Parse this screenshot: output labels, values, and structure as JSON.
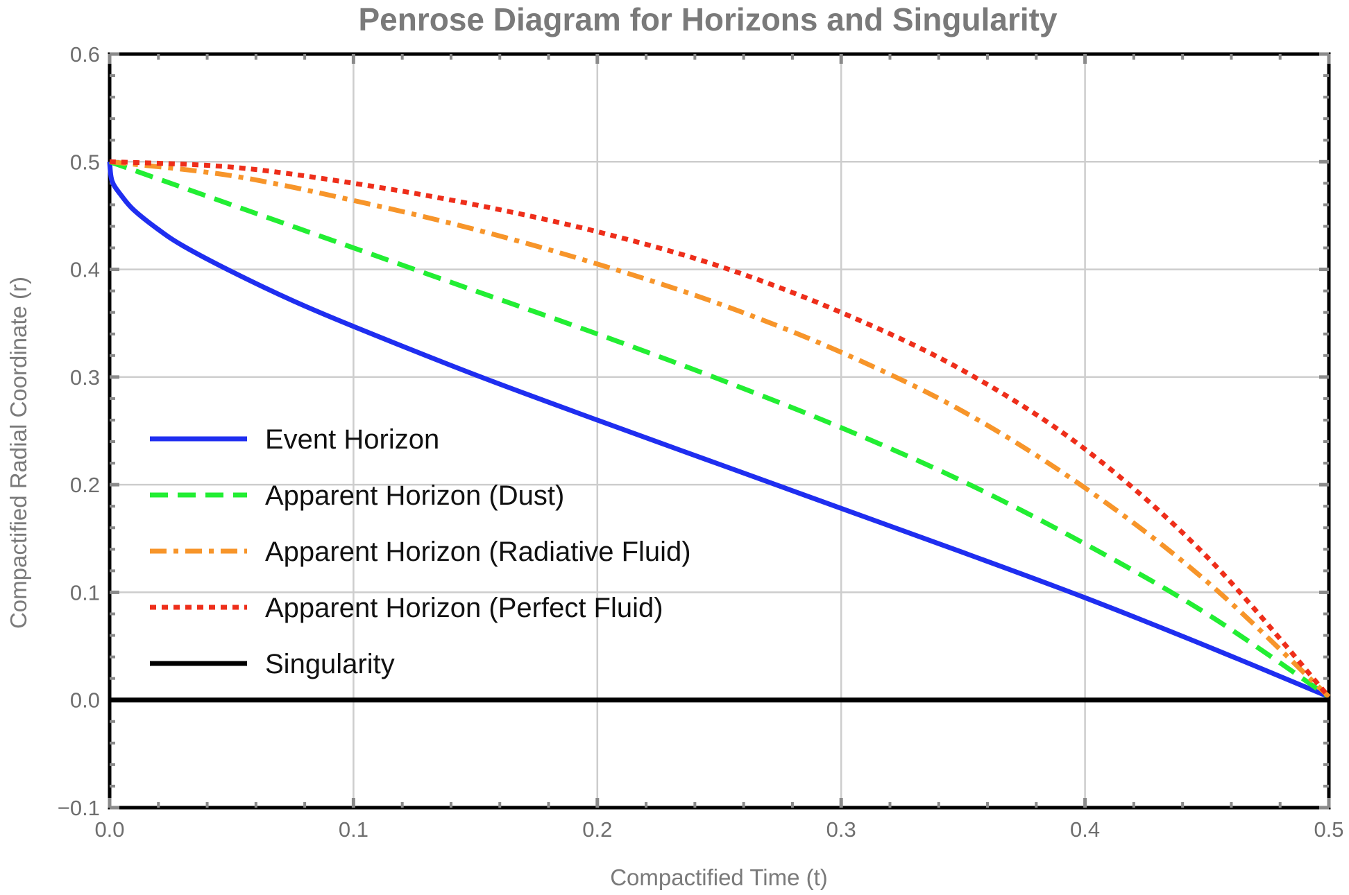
{
  "chart_data": {
    "type": "line",
    "title": "Penrose Diagram for Horizons and Singularity",
    "xlabel": "Compactified Time (t)",
    "ylabel": "Compactified Radial Coordinate (r)",
    "xlim": [
      0,
      0.5
    ],
    "ylim": [
      -0.1,
      0.6
    ],
    "x_ticks": [
      0,
      0.1,
      0.2,
      0.3,
      0.4,
      0.5
    ],
    "x_tick_labels": [
      "0.0",
      "0.1",
      "0.2",
      "0.3",
      "0.4",
      "0.5"
    ],
    "y_ticks": [
      -0.1,
      0,
      0.1,
      0.2,
      0.3,
      0.4,
      0.5,
      0.6
    ],
    "y_tick_labels": [
      "−0.1",
      "0.0",
      "0.1",
      "0.2",
      "0.3",
      "0.4",
      "0.5",
      "0.6"
    ],
    "grid": true,
    "legend_position": "center-left",
    "series": [
      {
        "name": "Event Horizon",
        "color": "#1f2ef0",
        "style": "solid",
        "x": [
          0,
          0.001,
          0.005,
          0.01,
          0.02,
          0.03,
          0.05,
          0.075,
          0.1,
          0.15,
          0.2,
          0.25,
          0.3,
          0.35,
          0.4,
          0.45,
          0.5
        ],
        "y": [
          0.5,
          0.482,
          0.468,
          0.455,
          0.437,
          0.422,
          0.398,
          0.371,
          0.347,
          0.302,
          0.26,
          0.219,
          0.178,
          0.137,
          0.095,
          0.05,
          0.003
        ]
      },
      {
        "name": "Apparent Horizon (Dust)",
        "color": "#22ee33",
        "style": "dashed",
        "x": [
          0,
          0.05,
          0.1,
          0.15,
          0.2,
          0.25,
          0.3,
          0.35,
          0.4,
          0.45,
          0.5
        ],
        "y": [
          0.5,
          0.46,
          0.42,
          0.38,
          0.34,
          0.298,
          0.253,
          0.203,
          0.145,
          0.08,
          0.003
        ]
      },
      {
        "name": "Apparent Horizon (Radiative Fluid)",
        "color": "#f7952a",
        "style": "dashdot",
        "x": [
          0,
          0.05,
          0.1,
          0.15,
          0.2,
          0.25,
          0.3,
          0.35,
          0.4,
          0.45,
          0.5
        ],
        "y": [
          0.5,
          0.487,
          0.464,
          0.437,
          0.405,
          0.368,
          0.323,
          0.268,
          0.197,
          0.11,
          0.003
        ]
      },
      {
        "name": "Apparent Horizon (Perfect Fluid)",
        "color": "#ee2e1a",
        "style": "dotted",
        "x": [
          0,
          0.05,
          0.1,
          0.15,
          0.2,
          0.25,
          0.3,
          0.35,
          0.4,
          0.45,
          0.5
        ],
        "y": [
          0.5,
          0.495,
          0.48,
          0.46,
          0.435,
          0.403,
          0.36,
          0.306,
          0.233,
          0.133,
          0.003
        ]
      },
      {
        "name": "Singularity",
        "color": "#000000",
        "style": "solid",
        "x": [
          0,
          0.5
        ],
        "y": [
          0,
          0
        ]
      }
    ]
  }
}
